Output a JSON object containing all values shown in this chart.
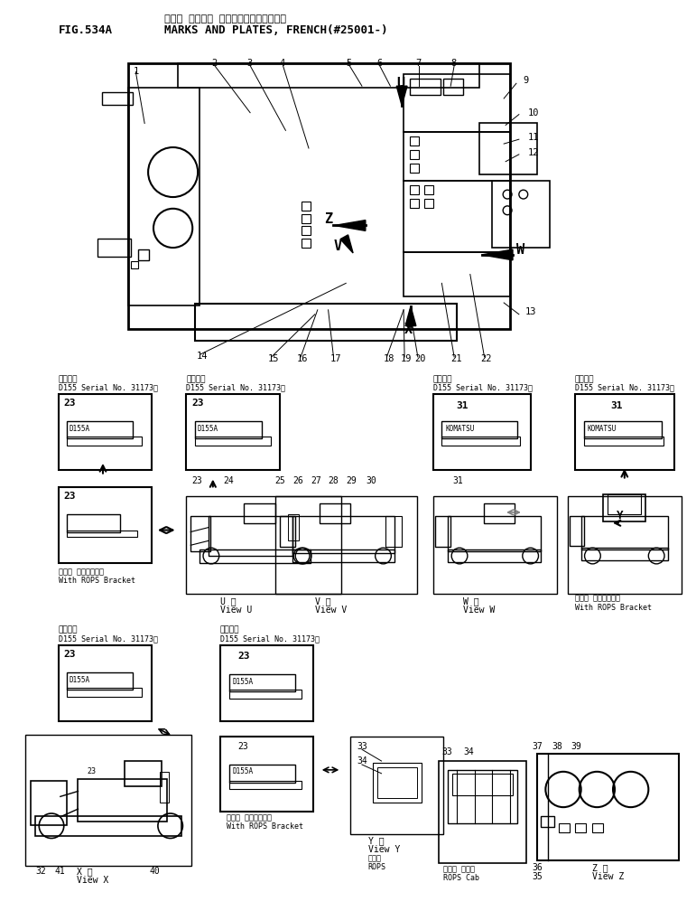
{
  "title_jp": "マーク ネアビ・ プレート（フランスコ）",
  "title_en": "MARKS AND PLATES, FRENCH(#25001-)",
  "fig_label": "FIG.534A",
  "bg_color": "#ffffff",
  "line_color": "#000000",
  "text_color": "#000000"
}
